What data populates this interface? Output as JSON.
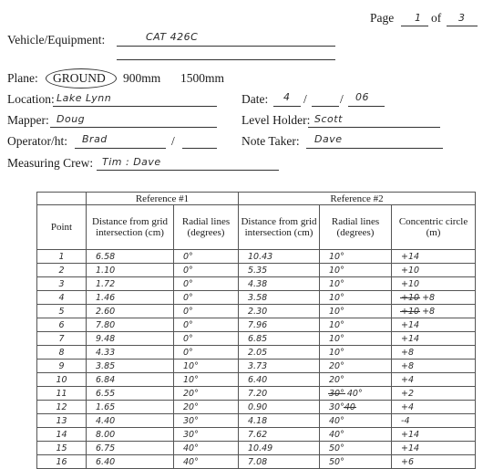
{
  "page": {
    "label": "Page",
    "of": "of",
    "number": "1",
    "total": "3"
  },
  "vehicle": {
    "label": "Vehicle/Equipment:",
    "value": "CAT 426C"
  },
  "plane": {
    "label": "Plane:",
    "options": [
      "GROUND",
      "900mm",
      "1500mm"
    ],
    "selected": "GROUND"
  },
  "location": {
    "label": "Location:",
    "value": "Lake Lynn"
  },
  "date": {
    "label": "Date:",
    "month": "4",
    "day": "",
    "year": "06"
  },
  "mapper": {
    "label": "Mapper:",
    "value": "Doug"
  },
  "level_holder": {
    "label": "Level Holder:",
    "value": "Scott"
  },
  "operator": {
    "label": "Operator/ht:",
    "value": "Brad"
  },
  "note_taker": {
    "label": "Note Taker:",
    "value": "Dave"
  },
  "crew": {
    "label": "Measuring Crew:",
    "value": "Tim : Dave"
  },
  "table": {
    "ref1": "Reference #1",
    "ref2": "Reference #2",
    "headers": {
      "point": "Point",
      "dist1": "Distance from grid intersection (cm)",
      "radial1": "Radial lines (degrees)",
      "dist2": "Distance from grid intersection (cm)",
      "radial2": "Radial lines (degrees)",
      "concentric": "Concentric circle (m)"
    },
    "rows": [
      {
        "point": "1",
        "dist1": "6.58",
        "radial1": "0°",
        "dist2": "10.43",
        "radial2": "10°",
        "conc": "+14"
      },
      {
        "point": "2",
        "dist1": "1.10",
        "radial1": "0°",
        "dist2": "5.35",
        "radial2": "10°",
        "conc": "+10"
      },
      {
        "point": "3",
        "dist1": "1.72",
        "radial1": "0°",
        "dist2": "4.38",
        "radial2": "10°",
        "conc": "+10"
      },
      {
        "point": "4",
        "dist1": "1.46",
        "radial1": "0°",
        "dist2": "3.58",
        "radial2": "10°",
        "conc": "+10 +8",
        "conc_strike": "+10",
        "conc_rest": "+8"
      },
      {
        "point": "5",
        "dist1": "2.60",
        "radial1": "0°",
        "dist2": "2.30",
        "radial2": "10°",
        "conc": "+10 +8",
        "conc_strike": "+10",
        "conc_rest": "+8"
      },
      {
        "point": "6",
        "dist1": "7.80",
        "radial1": "0°",
        "dist2": "7.96",
        "radial2": "10°",
        "conc": "+14"
      },
      {
        "point": "7",
        "dist1": "9.48",
        "radial1": "0°",
        "dist2": "6.85",
        "radial2": "10°",
        "conc": "+14"
      },
      {
        "point": "8",
        "dist1": "4.33",
        "radial1": "0°",
        "dist2": "2.05",
        "radial2": "10°",
        "conc": "+8"
      },
      {
        "point": "9",
        "dist1": "3.85",
        "radial1": "10°",
        "dist2": "3.73",
        "radial2": "20°",
        "conc": "+8"
      },
      {
        "point": "10",
        "dist1": "6.84",
        "radial1": "10°",
        "dist2": "6.40",
        "radial2": "20°",
        "conc": "+4"
      },
      {
        "point": "11",
        "dist1": "6.55",
        "radial1": "20°",
        "dist2": "7.20",
        "radial2": "30° 40°",
        "radial2_strike": "30°",
        "radial2_rest": "40°",
        "conc": "+2"
      },
      {
        "point": "12",
        "dist1": "1.65",
        "radial1": "20°",
        "dist2": "0.90",
        "radial2": "30° 40",
        "radial2_strike": "40",
        "radial2_pre": "30°",
        "conc": "+4"
      },
      {
        "point": "13",
        "dist1": "4.40",
        "radial1": "30°",
        "dist2": "4.18",
        "radial2": "40°",
        "conc": "-4"
      },
      {
        "point": "14",
        "dist1": "8.00",
        "radial1": "30°",
        "dist2": "7.62",
        "radial2": "40°",
        "conc": "+14"
      },
      {
        "point": "15",
        "dist1": "6.75",
        "radial1": "40°",
        "dist2": "10.49",
        "radial2": "50°",
        "conc": "+14"
      },
      {
        "point": "16",
        "dist1": "6.40",
        "radial1": "40°",
        "dist2": "7.08",
        "radial2": "50°",
        "conc": "+6"
      }
    ]
  }
}
